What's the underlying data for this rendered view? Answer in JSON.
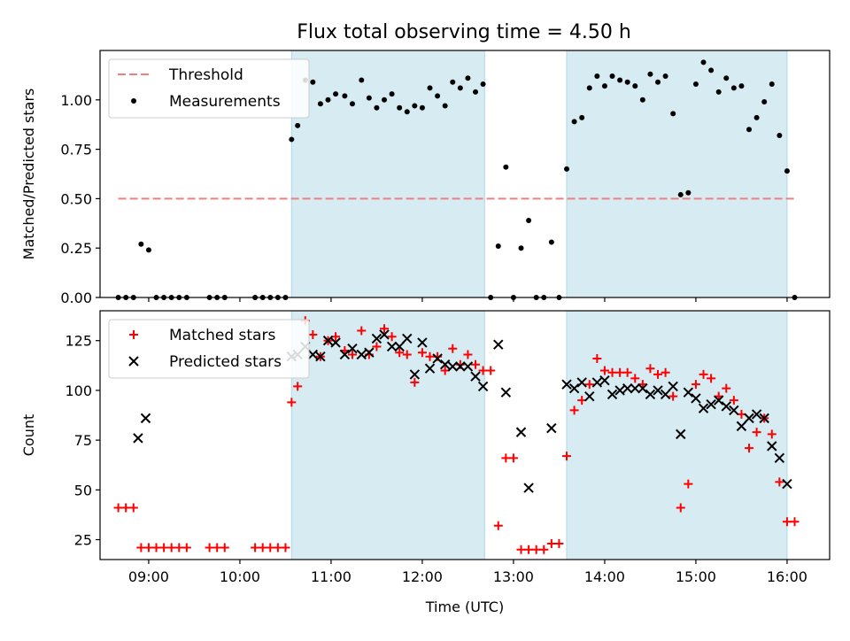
{
  "title": "Flux total observing time = 4.50 h",
  "chart_data": [
    {
      "type": "scatter",
      "ylabel": "Matched/Predicted stars",
      "xlabel": "",
      "xlim": [
        "08:28",
        "16:28"
      ],
      "ylim": [
        0,
        1.25
      ],
      "yticks": [
        0,
        0.25,
        0.5,
        0.75,
        1.0
      ],
      "ytick_labels": [
        "0.00",
        "0.25",
        "0.50",
        "0.75",
        "1.00"
      ],
      "xticks": [
        "09:00",
        "10:00",
        "11:00",
        "12:00",
        "13:00",
        "14:00",
        "15:00",
        "16:00"
      ],
      "xtick_labels": [
        "",
        "",
        "",
        "",
        "",
        "",
        "",
        ""
      ],
      "grid": false,
      "legend": "top-left",
      "shaded_intervals": [
        [
          "10:34",
          "12:41"
        ],
        [
          "13:35",
          "16:00"
        ]
      ],
      "threshold": {
        "name": "Threshold",
        "value": 0.5,
        "x_range": [
          "08:40",
          "16:05"
        ],
        "color": "#f08080"
      },
      "series": [
        {
          "name": "Measurements",
          "color": "#000000",
          "marker": "dot",
          "points": [
            [
              "08:40",
              0
            ],
            [
              "08:45",
              0
            ],
            [
              "08:50",
              0
            ],
            [
              "08:55",
              0.27
            ],
            [
              "09:00",
              0.24
            ],
            [
              "09:05",
              0
            ],
            [
              "09:10",
              0
            ],
            [
              "09:15",
              0
            ],
            [
              "09:20",
              0
            ],
            [
              "09:25",
              0
            ],
            [
              "09:40",
              0
            ],
            [
              "09:45",
              0
            ],
            [
              "09:50",
              0
            ],
            [
              "10:10",
              0
            ],
            [
              "10:15",
              0
            ],
            [
              "10:20",
              0
            ],
            [
              "10:25",
              0
            ],
            [
              "10:30",
              0
            ],
            [
              "10:34",
              0.8
            ],
            [
              "10:38",
              0.87
            ],
            [
              "10:43",
              1.1
            ],
            [
              "10:48",
              1.09
            ],
            [
              "10:53",
              0.98
            ],
            [
              "10:58",
              1.0
            ],
            [
              "11:03",
              1.03
            ],
            [
              "11:09",
              1.02
            ],
            [
              "11:14",
              0.98
            ],
            [
              "11:20",
              1.1
            ],
            [
              "11:25",
              1.01
            ],
            [
              "11:30",
              0.96
            ],
            [
              "11:35",
              1.0
            ],
            [
              "11:40",
              1.03
            ],
            [
              "11:45",
              0.96
            ],
            [
              "11:50",
              0.94
            ],
            [
              "11:55",
              0.97
            ],
            [
              "12:00",
              0.96
            ],
            [
              "12:05",
              1.06
            ],
            [
              "12:10",
              1.02
            ],
            [
              "12:15",
              0.97
            ],
            [
              "12:20",
              1.09
            ],
            [
              "12:25",
              1.06
            ],
            [
              "12:30",
              1.11
            ],
            [
              "12:35",
              1.04
            ],
            [
              "12:40",
              1.08
            ],
            [
              "12:45",
              0
            ],
            [
              "12:50",
              0.26
            ],
            [
              "12:55",
              0.66
            ],
            [
              "13:00",
              0
            ],
            [
              "13:05",
              0.25
            ],
            [
              "13:10",
              0.39
            ],
            [
              "13:15",
              0
            ],
            [
              "13:20",
              0
            ],
            [
              "13:25",
              0.28
            ],
            [
              "13:30",
              0
            ],
            [
              "13:35",
              0.65
            ],
            [
              "13:40",
              0.89
            ],
            [
              "13:45",
              0.91
            ],
            [
              "13:50",
              1.06
            ],
            [
              "13:55",
              1.12
            ],
            [
              "14:00",
              1.07
            ],
            [
              "14:05",
              1.12
            ],
            [
              "14:10",
              1.1
            ],
            [
              "14:15",
              1.09
            ],
            [
              "14:20",
              1.07
            ],
            [
              "14:25",
              1.0
            ],
            [
              "14:30",
              1.13
            ],
            [
              "14:35",
              1.09
            ],
            [
              "14:40",
              1.12
            ],
            [
              "14:45",
              0.93
            ],
            [
              "14:50",
              0.52
            ],
            [
              "14:55",
              0.53
            ],
            [
              "15:00",
              1.08
            ],
            [
              "15:05",
              1.19
            ],
            [
              "15:10",
              1.15
            ],
            [
              "15:15",
              1.04
            ],
            [
              "15:20",
              1.11
            ],
            [
              "15:25",
              1.06
            ],
            [
              "15:30",
              1.07
            ],
            [
              "15:35",
              0.85
            ],
            [
              "15:40",
              0.91
            ],
            [
              "15:45",
              0.99
            ],
            [
              "15:50",
              1.08
            ],
            [
              "15:55",
              0.82
            ],
            [
              "16:00",
              0.64
            ],
            [
              "16:05",
              0
            ]
          ]
        }
      ]
    },
    {
      "type": "scatter",
      "ylabel": "Count",
      "xlabel": "Time (UTC)",
      "xlim": [
        "08:28",
        "16:28"
      ],
      "ylim": [
        15,
        140
      ],
      "yticks": [
        25,
        50,
        75,
        100,
        125
      ],
      "ytick_labels": [
        "25",
        "50",
        "75",
        "100",
        "125"
      ],
      "xticks": [
        "09:00",
        "10:00",
        "11:00",
        "12:00",
        "13:00",
        "14:00",
        "15:00",
        "16:00"
      ],
      "xtick_labels": [
        "09:00",
        "10:00",
        "11:00",
        "12:00",
        "13:00",
        "14:00",
        "15:00",
        "16:00"
      ],
      "grid": false,
      "legend": "top-left",
      "shaded_intervals": [
        [
          "10:34",
          "12:41"
        ],
        [
          "13:35",
          "16:00"
        ]
      ],
      "series": [
        {
          "name": "Matched stars",
          "color": "#ff0000",
          "marker": "plus",
          "points": [
            [
              "08:40",
              41
            ],
            [
              "08:45",
              41
            ],
            [
              "08:50",
              41
            ],
            [
              "08:55",
              21
            ],
            [
              "09:00",
              21
            ],
            [
              "09:05",
              21
            ],
            [
              "09:10",
              21
            ],
            [
              "09:15",
              21
            ],
            [
              "09:20",
              21
            ],
            [
              "09:25",
              21
            ],
            [
              "09:40",
              21
            ],
            [
              "09:45",
              21
            ],
            [
              "09:50",
              21
            ],
            [
              "10:10",
              21
            ],
            [
              "10:15",
              21
            ],
            [
              "10:20",
              21
            ],
            [
              "10:25",
              21
            ],
            [
              "10:30",
              21
            ],
            [
              "10:34",
              94
            ],
            [
              "10:38",
              102
            ],
            [
              "10:43",
              135
            ],
            [
              "10:48",
              128
            ],
            [
              "10:53",
              117
            ],
            [
              "10:58",
              125
            ],
            [
              "11:03",
              127
            ],
            [
              "11:09",
              120
            ],
            [
              "11:14",
              118
            ],
            [
              "11:20",
              130
            ],
            [
              "11:25",
              118
            ],
            [
              "11:30",
              122
            ],
            [
              "11:35",
              131
            ],
            [
              "11:40",
              127
            ],
            [
              "11:45",
              119
            ],
            [
              "11:50",
              118
            ],
            [
              "11:55",
              104
            ],
            [
              "12:00",
              119
            ],
            [
              "12:05",
              117
            ],
            [
              "12:10",
              117
            ],
            [
              "12:15",
              110
            ],
            [
              "12:20",
              121
            ],
            [
              "12:25",
              113
            ],
            [
              "12:30",
              118
            ],
            [
              "12:35",
              113
            ],
            [
              "12:40",
              110
            ],
            [
              "12:45",
              110
            ],
            [
              "12:50",
              32
            ],
            [
              "12:55",
              66
            ],
            [
              "13:00",
              66
            ],
            [
              "13:05",
              20
            ],
            [
              "13:10",
              20
            ],
            [
              "13:15",
              20
            ],
            [
              "13:20",
              20
            ],
            [
              "13:25",
              23
            ],
            [
              "13:30",
              23
            ],
            [
              "13:35",
              67
            ],
            [
              "13:40",
              90
            ],
            [
              "13:45",
              95
            ],
            [
              "13:50",
              103
            ],
            [
              "13:55",
              116
            ],
            [
              "14:00",
              110
            ],
            [
              "14:05",
              109
            ],
            [
              "14:10",
              109
            ],
            [
              "14:15",
              109
            ],
            [
              "14:20",
              106
            ],
            [
              "14:25",
              103
            ],
            [
              "14:30",
              111
            ],
            [
              "14:35",
              108
            ],
            [
              "14:40",
              109
            ],
            [
              "14:45",
              97
            ],
            [
              "14:50",
              41
            ],
            [
              "14:55",
              53
            ],
            [
              "15:00",
              103
            ],
            [
              "15:05",
              108
            ],
            [
              "15:10",
              106
            ],
            [
              "15:15",
              97
            ],
            [
              "15:20",
              101
            ],
            [
              "15:25",
              95
            ],
            [
              "15:30",
              88
            ],
            [
              "15:35",
              71
            ],
            [
              "15:40",
              79
            ],
            [
              "15:45",
              86
            ],
            [
              "15:50",
              78
            ],
            [
              "15:55",
              54
            ],
            [
              "16:00",
              34
            ],
            [
              "16:05",
              34
            ]
          ]
        },
        {
          "name": "Predicted stars",
          "color": "#000000",
          "marker": "x",
          "points": [
            [
              "08:53",
              76
            ],
            [
              "08:58",
              86
            ],
            [
              "10:34",
              117
            ],
            [
              "10:38",
              118
            ],
            [
              "10:43",
              122
            ],
            [
              "10:48",
              118
            ],
            [
              "10:53",
              117
            ],
            [
              "10:58",
              125
            ],
            [
              "11:03",
              124
            ],
            [
              "11:09",
              118
            ],
            [
              "11:14",
              121
            ],
            [
              "11:20",
              118
            ],
            [
              "11:25",
              119
            ],
            [
              "11:30",
              126
            ],
            [
              "11:35",
              128
            ],
            [
              "11:40",
              122
            ],
            [
              "11:45",
              122
            ],
            [
              "11:50",
              126
            ],
            [
              "11:55",
              108
            ],
            [
              "12:00",
              124
            ],
            [
              "12:05",
              111
            ],
            [
              "12:10",
              116
            ],
            [
              "12:15",
              113
            ],
            [
              "12:20",
              112
            ],
            [
              "12:25",
              112
            ],
            [
              "12:30",
              112
            ],
            [
              "12:35",
              107
            ],
            [
              "12:40",
              102
            ],
            [
              "12:50",
              123
            ],
            [
              "12:55",
              99
            ],
            [
              "13:05",
              79
            ],
            [
              "13:10",
              51
            ],
            [
              "13:25",
              81
            ],
            [
              "13:35",
              103
            ],
            [
              "13:40",
              101
            ],
            [
              "13:45",
              104
            ],
            [
              "13:50",
              97
            ],
            [
              "13:55",
              104
            ],
            [
              "14:00",
              105
            ],
            [
              "14:05",
              98
            ],
            [
              "14:10",
              100
            ],
            [
              "14:15",
              101
            ],
            [
              "14:20",
              101
            ],
            [
              "14:25",
              101
            ],
            [
              "14:30",
              98
            ],
            [
              "14:35",
              100
            ],
            [
              "14:40",
              98
            ],
            [
              "14:45",
              102
            ],
            [
              "14:50",
              78
            ],
            [
              "14:55",
              99
            ],
            [
              "15:00",
              96
            ],
            [
              "15:05",
              91
            ],
            [
              "15:10",
              93
            ],
            [
              "15:15",
              95
            ],
            [
              "15:20",
              92
            ],
            [
              "15:25",
              90
            ],
            [
              "15:30",
              82
            ],
            [
              "15:35",
              86
            ],
            [
              "15:40",
              88
            ],
            [
              "15:45",
              86
            ],
            [
              "15:50",
              72
            ],
            [
              "15:55",
              66
            ],
            [
              "16:00",
              53
            ]
          ]
        }
      ]
    }
  ]
}
